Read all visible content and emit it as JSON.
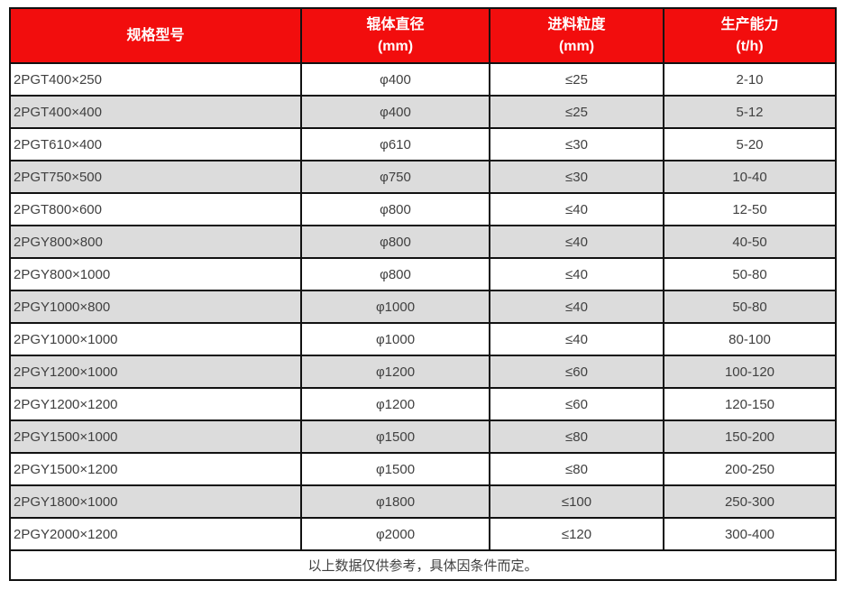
{
  "table": {
    "columns": [
      {
        "label": "规格型号",
        "unit": ""
      },
      {
        "label": "辊体直径",
        "unit": "(mm)"
      },
      {
        "label": "进料粒度",
        "unit": "(mm)"
      },
      {
        "label": "生产能力",
        "unit": "(t/h)"
      }
    ],
    "rows": [
      [
        "2PGT400×250",
        "φ400",
        "≤25",
        "2-10"
      ],
      [
        "2PGT400×400",
        "φ400",
        "≤25",
        "5-12"
      ],
      [
        "2PGT610×400",
        "φ610",
        "≤30",
        "5-20"
      ],
      [
        "2PGT750×500",
        "φ750",
        "≤30",
        "10-40"
      ],
      [
        "2PGT800×600",
        "φ800",
        "≤40",
        "12-50"
      ],
      [
        "2PGY800×800",
        "φ800",
        "≤40",
        "40-50"
      ],
      [
        "2PGY800×1000",
        "φ800",
        "≤40",
        "50-80"
      ],
      [
        "2PGY1000×800",
        "φ1000",
        "≤40",
        "50-80"
      ],
      [
        "2PGY1000×1000",
        "φ1000",
        "≤40",
        "80-100"
      ],
      [
        "2PGY1200×1000",
        "φ1200",
        "≤60",
        "100-120"
      ],
      [
        "2PGY1200×1200",
        "φ1200",
        "≤60",
        "120-150"
      ],
      [
        "2PGY1500×1000",
        "φ1500",
        "≤80",
        "150-200"
      ],
      [
        "2PGY1500×1200",
        "φ1500",
        "≤80",
        "200-250"
      ],
      [
        "2PGY1800×1000",
        "φ1800",
        "≤100",
        "250-300"
      ],
      [
        "2PGY2000×1200",
        "φ2000",
        "≤120",
        "300-400"
      ]
    ],
    "footer_note": "以上数据仅供参考，具体因条件而定。"
  },
  "colors": {
    "header_bg": "#f20d0d",
    "header_text": "#ffffff",
    "row_bg": "#ffffff",
    "row_alt_bg": "#dcdcdc",
    "border": "#111111",
    "cell_text": "#404040"
  },
  "chart_data": {
    "type": "table",
    "title": "",
    "columns": [
      "规格型号",
      "辊体直径 (mm)",
      "进料粒度 (mm)",
      "生产能力 (t/h)"
    ],
    "rows": [
      [
        "2PGT400×250",
        "φ400",
        "≤25",
        "2-10"
      ],
      [
        "2PGT400×400",
        "φ400",
        "≤25",
        "5-12"
      ],
      [
        "2PGT610×400",
        "φ610",
        "≤30",
        "5-20"
      ],
      [
        "2PGT750×500",
        "φ750",
        "≤30",
        "10-40"
      ],
      [
        "2PGT800×600",
        "φ800",
        "≤40",
        "12-50"
      ],
      [
        "2PGY800×800",
        "φ800",
        "≤40",
        "40-50"
      ],
      [
        "2PGY800×1000",
        "φ800",
        "≤40",
        "50-80"
      ],
      [
        "2PGY1000×800",
        "φ1000",
        "≤40",
        "50-80"
      ],
      [
        "2PGY1000×1000",
        "φ1000",
        "≤40",
        "80-100"
      ],
      [
        "2PGY1200×1000",
        "φ1200",
        "≤60",
        "100-120"
      ],
      [
        "2PGY1200×1200",
        "φ1200",
        "≤60",
        "120-150"
      ],
      [
        "2PGY1500×1000",
        "φ1500",
        "≤80",
        "150-200"
      ],
      [
        "2PGY1500×1200",
        "φ1500",
        "≤80",
        "200-250"
      ],
      [
        "2PGY1800×1000",
        "φ1800",
        "≤100",
        "250-300"
      ],
      [
        "2PGY2000×1200",
        "φ2000",
        "≤120",
        "300-400"
      ]
    ],
    "footnote": "以上数据仅供参考，具体因条件而定。"
  }
}
